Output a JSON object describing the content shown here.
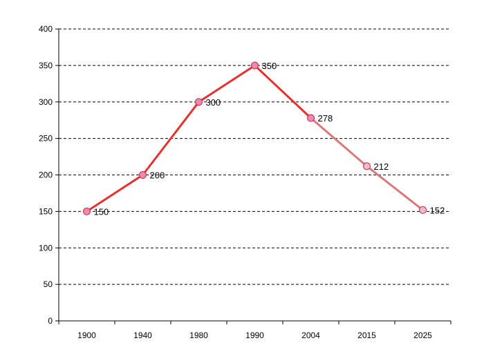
{
  "chart_data": {
    "type": "line",
    "title": "",
    "xlabel": "",
    "ylabel": "",
    "categories": [
      "1900",
      "1940",
      "1980",
      "1990",
      "2004",
      "2015",
      "2025"
    ],
    "series": [
      {
        "values": [
          150,
          200,
          300,
          350,
          278,
          212,
          152
        ],
        "data_labels": [
          "150",
          "200",
          "300",
          "350",
          "278",
          "212",
          "152"
        ]
      }
    ],
    "ylim": [
      0,
      400
    ],
    "y_ticks": [
      "0",
      "50",
      "100",
      "150",
      "200",
      "250",
      "300",
      "350",
      "400"
    ],
    "grid": true,
    "grid_style": "dashed horizontal",
    "legend": "none",
    "colors": {
      "actual_line": "#e8302a",
      "projected_line": "#d9787a",
      "actual_marker_fill": "#f088b0",
      "projected_marker_fill": "#f6b8cf",
      "marker_stroke": "#c2304a",
      "grid": "#000000",
      "axis": "#000000"
    },
    "projected_from_index": 4
  }
}
